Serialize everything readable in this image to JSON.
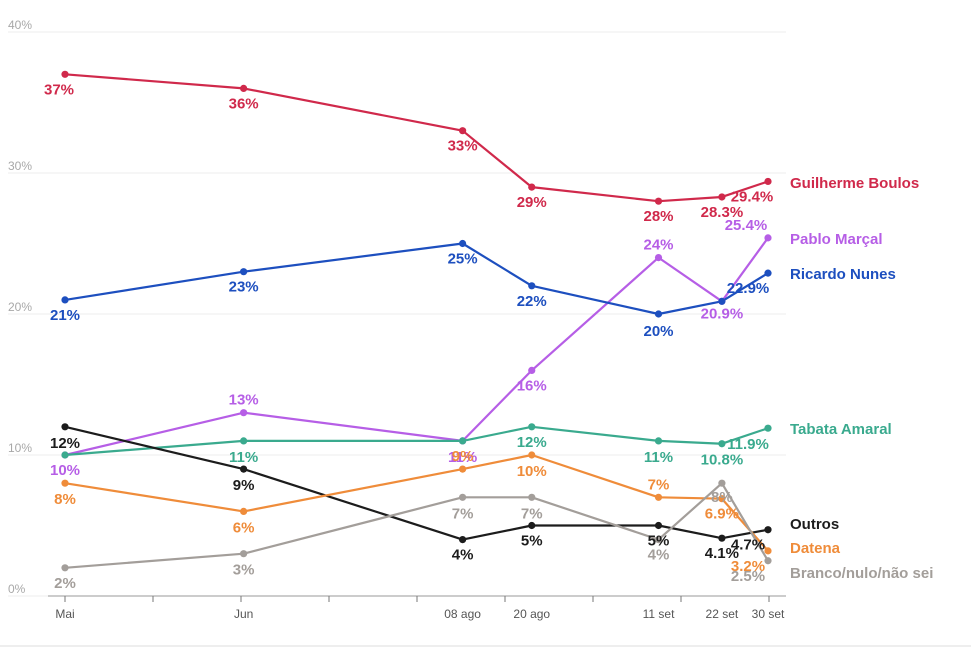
{
  "chart_data": {
    "type": "line",
    "x": [
      "Mai",
      "Jun",
      "08 ago",
      "20 ago",
      "11 set",
      "22 set",
      "30 set"
    ],
    "x_days": [
      0,
      31,
      69,
      81,
      103,
      114,
      122
    ],
    "ylim": [
      0,
      40
    ],
    "yticks": [
      0,
      10,
      20,
      30,
      40
    ],
    "ytick_labels": [
      "0%",
      "10%",
      "20%",
      "30%",
      "40%"
    ],
    "grid": true,
    "legend": "right (labels at line ends)",
    "series": [
      {
        "name": "Guilherme Boulos",
        "color": "#d0294b",
        "values": [
          37,
          36,
          33,
          29,
          28,
          28.3,
          29.4
        ],
        "labels": [
          "37%",
          "36%",
          "33%",
          "29%",
          "28%",
          "28.3%",
          "29.4%"
        ]
      },
      {
        "name": "Pablo Marçal",
        "color": "#b65ee6",
        "values": [
          10,
          13,
          11,
          16,
          24,
          20.9,
          25.4
        ],
        "labels": [
          "10%",
          "13%",
          "11%",
          "16%",
          "24%",
          "20.9%",
          "25.4%"
        ]
      },
      {
        "name": "Ricardo Nunes",
        "color": "#1d4fbf",
        "values": [
          21,
          23,
          25,
          22,
          20,
          20.9,
          22.9
        ],
        "labels": [
          "21%",
          "23%",
          "25%",
          "22%",
          "20%",
          "",
          "22.9%"
        ]
      },
      {
        "name": "Tabata Amaral",
        "color": "#3aaa8e",
        "values": [
          10,
          11,
          11,
          12,
          11,
          10.8,
          11.9
        ],
        "labels": [
          "",
          "11%",
          "",
          "12%",
          "11%",
          "10.8%",
          "11.9%"
        ]
      },
      {
        "name": "Outros",
        "color": "#1c1c1c",
        "values": [
          12,
          9,
          4,
          5,
          5,
          4.1,
          4.7
        ],
        "labels": [
          "12%",
          "9%",
          "4%",
          "5%",
          "5%",
          "4.1%",
          "4.7%"
        ]
      },
      {
        "name": "Datena",
        "color": "#ef8c3a",
        "values": [
          8,
          6,
          9,
          10,
          7,
          6.9,
          3.2
        ],
        "labels": [
          "8%",
          "6%",
          "9%",
          "10%",
          "7%",
          "6.9%",
          "3.2%"
        ]
      },
      {
        "name": "Branco/nulo/não sei",
        "color": "#a39e9a",
        "values": [
          2,
          3,
          7,
          7,
          4,
          8,
          2.5
        ],
        "labels": [
          "2%",
          "3%",
          "7%",
          "7%",
          "4%",
          "8%",
          "2.5%"
        ]
      }
    ]
  }
}
